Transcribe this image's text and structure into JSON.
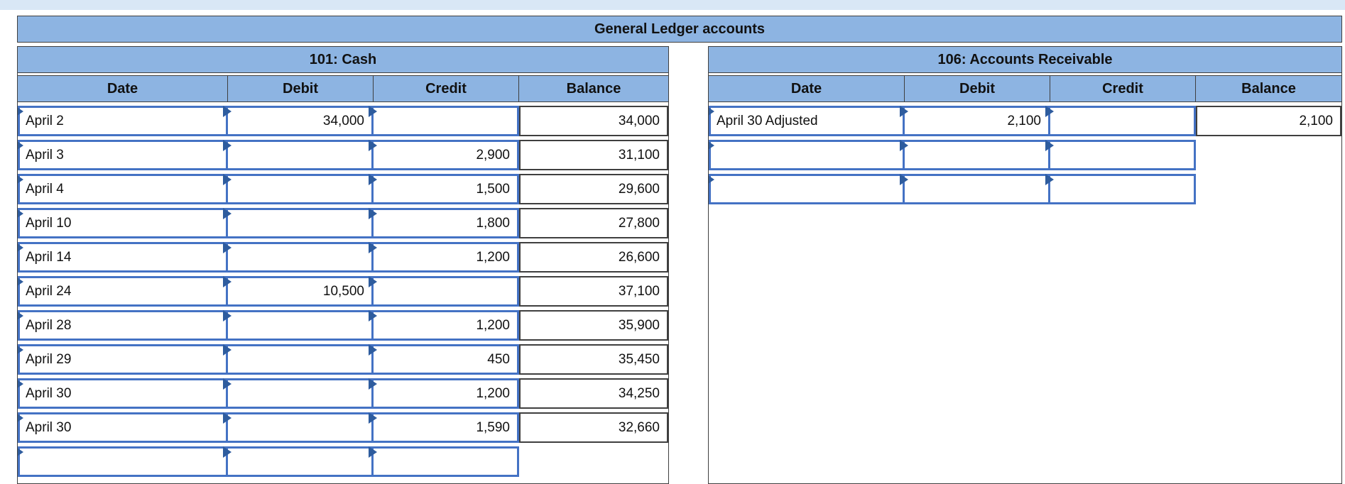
{
  "app": {
    "title": "General Ledger accounts"
  },
  "colors": {
    "header_blue": "#8DB4E2",
    "input_cell_border": "#4472C4",
    "input_marker": "#2E5C9E",
    "thin_border": "#3f3f3f",
    "top_strip": "#D9E7F6"
  },
  "icons": {
    "input_marker": "input-marker-icon"
  },
  "tables": [
    {
      "id": "cash",
      "title": "101: Cash",
      "columns": [
        "Date",
        "Debit",
        "Credit",
        "Balance"
      ],
      "rows": [
        {
          "date": "April 2",
          "debit": "34,000",
          "credit": "",
          "balance": "34,000"
        },
        {
          "date": "April 3",
          "debit": "",
          "credit": "2,900",
          "balance": "31,100"
        },
        {
          "date": "April 4",
          "debit": "",
          "credit": "1,500",
          "balance": "29,600"
        },
        {
          "date": "April 10",
          "debit": "",
          "credit": "1,800",
          "balance": "27,800"
        },
        {
          "date": "April 14",
          "debit": "",
          "credit": "1,200",
          "balance": "26,600"
        },
        {
          "date": "April 24",
          "debit": "10,500",
          "credit": "",
          "balance": "37,100"
        },
        {
          "date": "April 28",
          "debit": "",
          "credit": "1,200",
          "balance": "35,900"
        },
        {
          "date": "April 29",
          "debit": "",
          "credit": "450",
          "balance": "35,450"
        },
        {
          "date": "April 30",
          "debit": "",
          "credit": "1,200",
          "balance": "34,250"
        },
        {
          "date": "April 30",
          "debit": "",
          "credit": "1,590",
          "balance": "32,660"
        },
        {
          "date": "",
          "debit": "",
          "credit": "",
          "balance": ""
        }
      ]
    },
    {
      "id": "accounts-receivable",
      "title": "106: Accounts Receivable",
      "columns": [
        "Date",
        "Debit",
        "Credit",
        "Balance"
      ],
      "rows": [
        {
          "date": "April 30 Adjusted",
          "debit": "2,100",
          "credit": "",
          "balance": "2,100"
        },
        {
          "date": "",
          "debit": "",
          "credit": "",
          "balance": ""
        },
        {
          "date": "",
          "debit": "",
          "credit": "",
          "balance": ""
        }
      ]
    }
  ]
}
